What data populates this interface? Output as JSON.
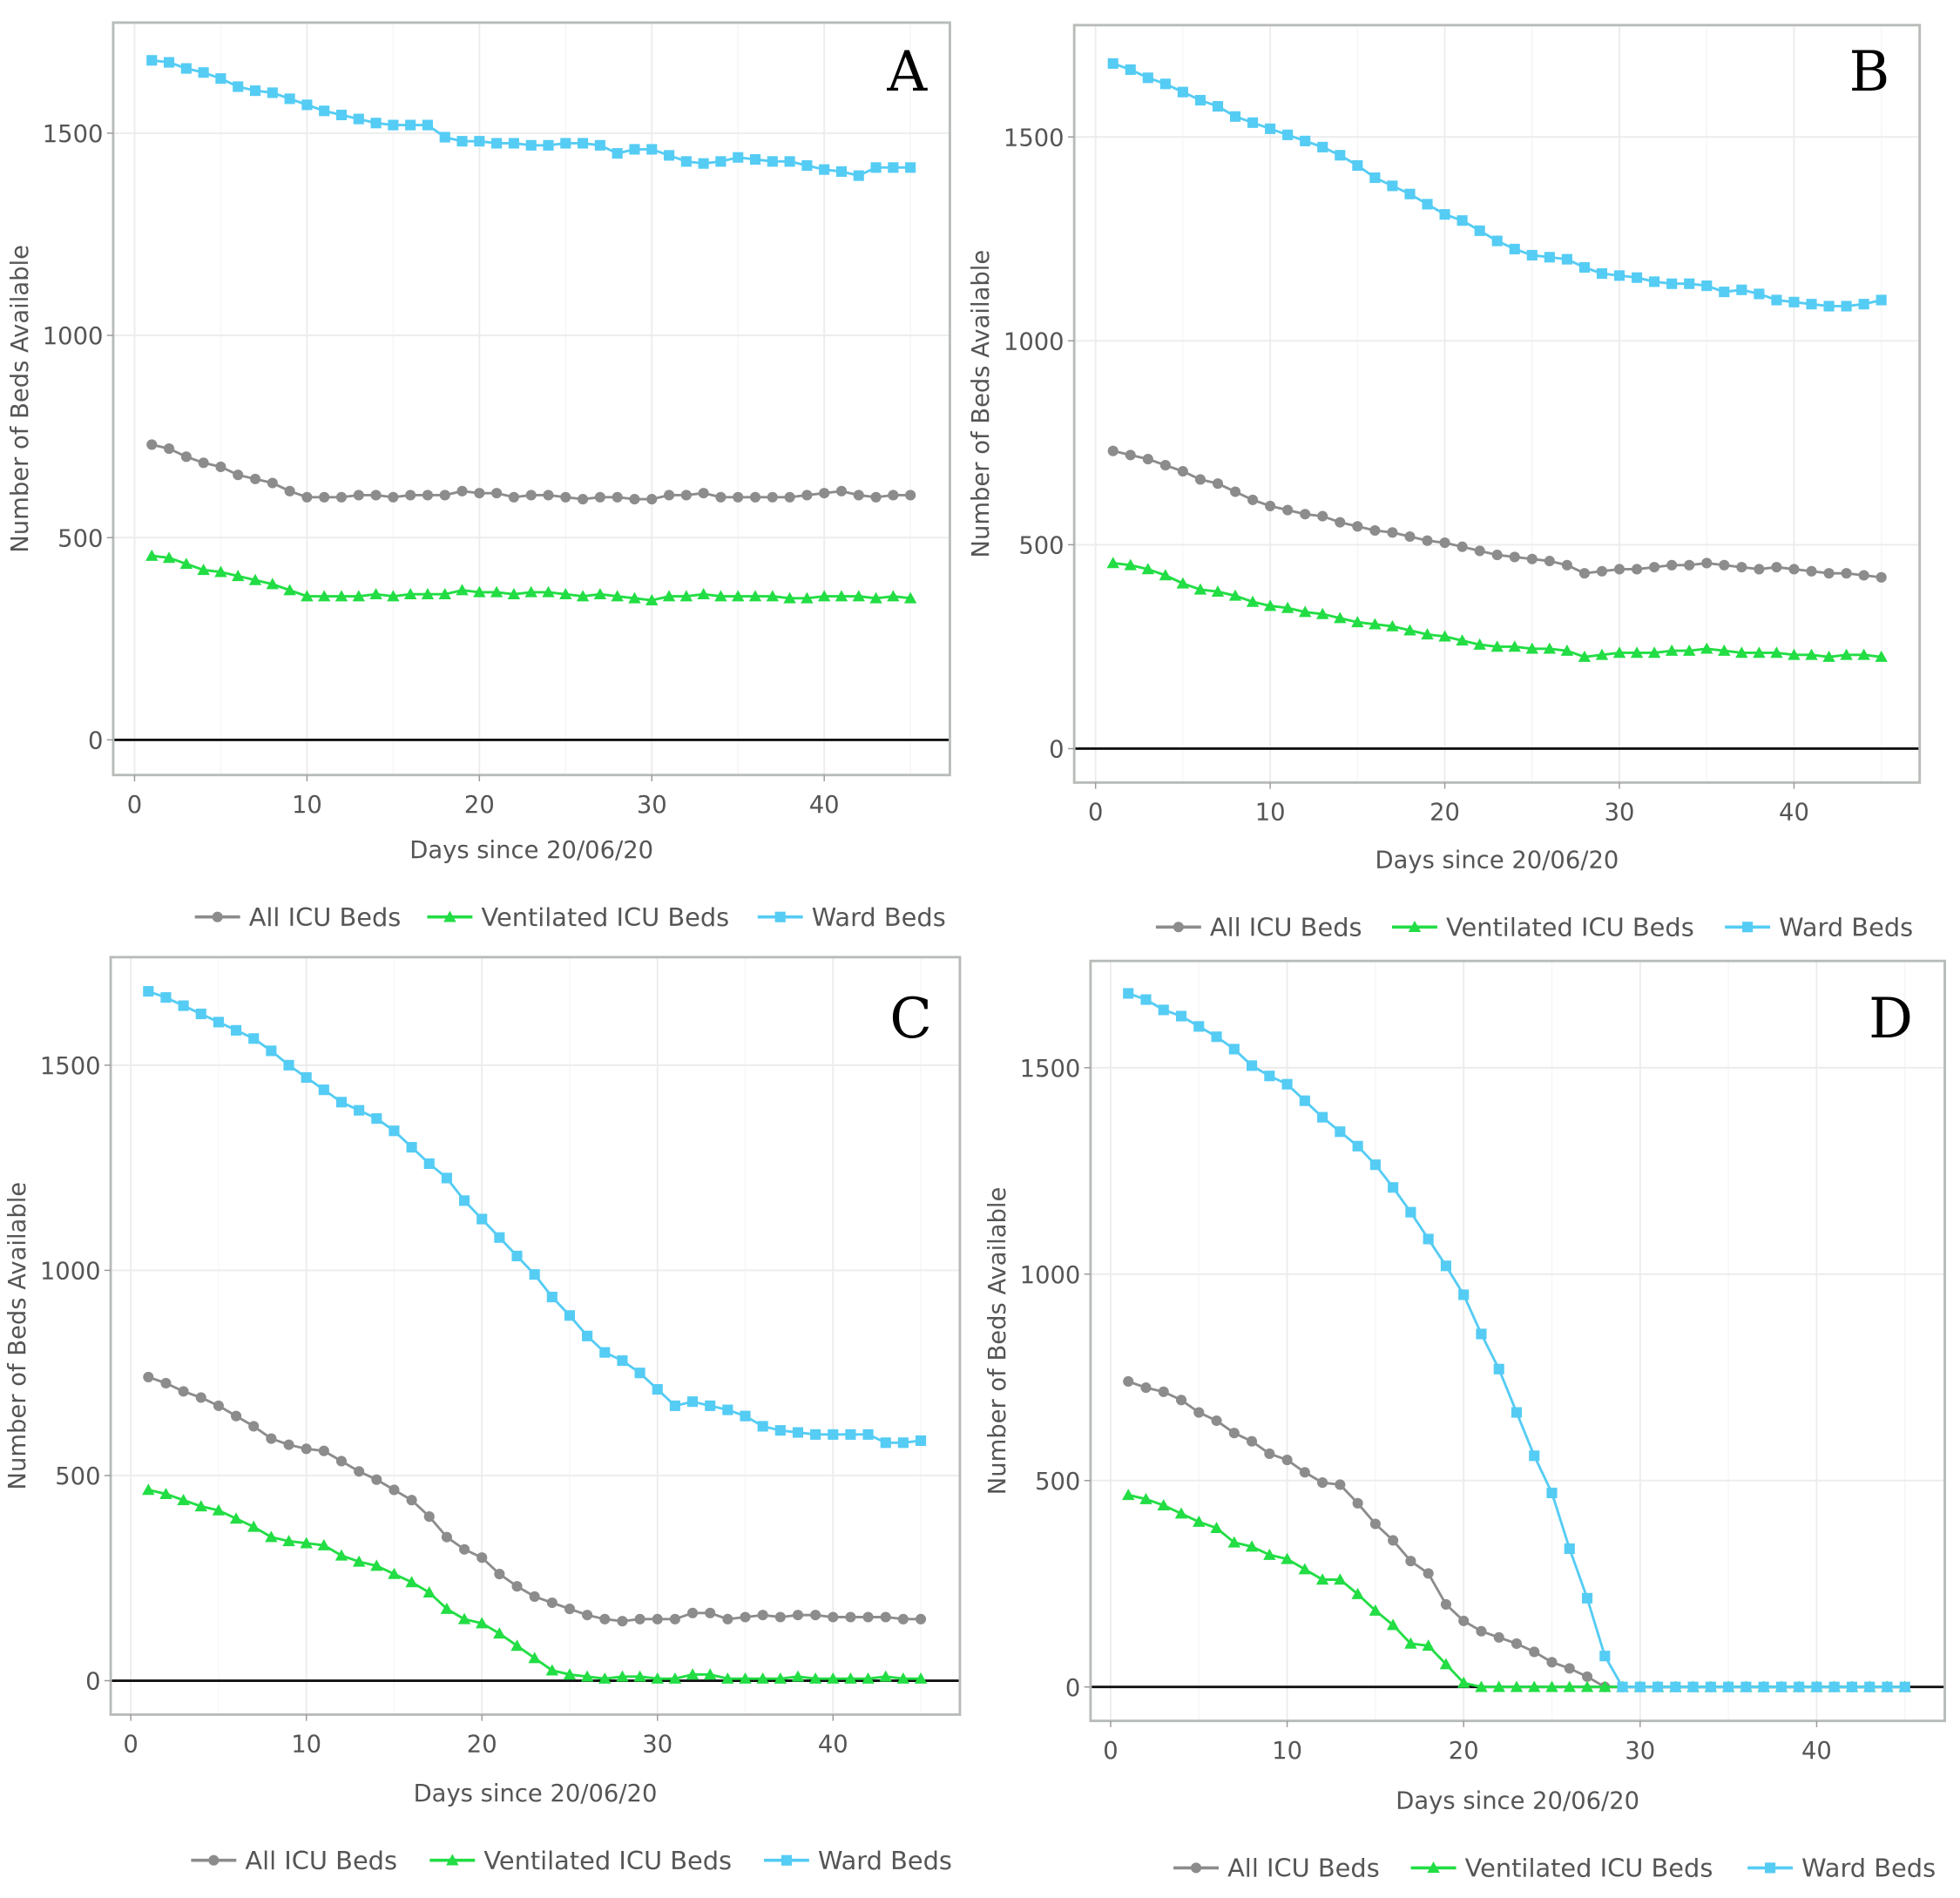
{
  "colors": {
    "all_icu": "#8c8c8c",
    "ventilated_icu": "#22dd44",
    "ward": "#55ccf4",
    "panel_border": "#b8bcb8",
    "zero_line": "#111111",
    "grid": "#ececec"
  },
  "chart_data": [
    {
      "panel": "A",
      "type": "line",
      "xlabel": "Days since 20/06/20",
      "ylabel": "Number of Beds Available",
      "xlim": [
        -1,
        47
      ],
      "ylim": [
        -90,
        1770
      ],
      "xticks": [
        0,
        10,
        20,
        30,
        40
      ],
      "yticks": [
        0,
        500,
        1000,
        1500
      ],
      "grid": true,
      "legend": "bottom",
      "x": [
        1,
        2,
        3,
        4,
        5,
        6,
        7,
        8,
        9,
        10,
        11,
        12,
        13,
        14,
        15,
        16,
        17,
        18,
        19,
        20,
        21,
        22,
        23,
        24,
        25,
        26,
        27,
        28,
        29,
        30,
        31,
        32,
        33,
        34,
        35,
        36,
        37,
        38,
        39,
        40,
        41,
        42,
        43,
        44,
        45
      ],
      "series": [
        {
          "name": "All ICU Beds",
          "marker": "circle",
          "values": [
            730,
            720,
            700,
            685,
            675,
            655,
            645,
            635,
            615,
            600,
            600,
            600,
            605,
            605,
            600,
            605,
            605,
            605,
            615,
            610,
            610,
            600,
            605,
            605,
            600,
            595,
            600,
            600,
            595,
            595,
            605,
            605,
            610,
            600,
            600,
            600,
            600,
            600,
            605,
            610,
            615,
            605,
            600,
            605,
            605
          ]
        },
        {
          "name": "Ventilated ICU Beds",
          "marker": "triangle",
          "values": [
            455,
            450,
            435,
            420,
            415,
            405,
            395,
            385,
            370,
            355,
            355,
            355,
            355,
            360,
            355,
            360,
            360,
            360,
            370,
            365,
            365,
            360,
            365,
            365,
            360,
            355,
            360,
            355,
            350,
            345,
            355,
            355,
            360,
            355,
            355,
            355,
            355,
            350,
            350,
            355,
            355,
            355,
            350,
            355,
            350
          ]
        },
        {
          "name": "Ward Beds",
          "marker": "square",
          "values": [
            1680,
            1675,
            1660,
            1650,
            1635,
            1615,
            1605,
            1600,
            1585,
            1570,
            1555,
            1545,
            1535,
            1525,
            1520,
            1520,
            1520,
            1490,
            1480,
            1480,
            1475,
            1475,
            1470,
            1470,
            1475,
            1475,
            1470,
            1450,
            1460,
            1460,
            1445,
            1430,
            1425,
            1430,
            1440,
            1435,
            1430,
            1430,
            1420,
            1410,
            1405,
            1395,
            1415,
            1415,
            1415
          ]
        }
      ]
    },
    {
      "panel": "B",
      "type": "line",
      "xlabel": "Days since 20/06/20",
      "ylabel": "Number of Beds Available",
      "xlim": [
        -1,
        47
      ],
      "ylim": [
        -90,
        1770
      ],
      "xticks": [
        0,
        10,
        20,
        30,
        40
      ],
      "yticks": [
        0,
        500,
        1000,
        1500
      ],
      "grid": true,
      "legend": "bottom",
      "x": [
        1,
        2,
        3,
        4,
        5,
        6,
        7,
        8,
        9,
        10,
        11,
        12,
        13,
        14,
        15,
        16,
        17,
        18,
        19,
        20,
        21,
        22,
        23,
        24,
        25,
        26,
        27,
        28,
        29,
        30,
        31,
        32,
        33,
        34,
        35,
        36,
        37,
        38,
        39,
        40,
        41,
        42,
        43,
        44,
        45
      ],
      "series": [
        {
          "name": "All ICU Beds",
          "marker": "circle",
          "values": [
            730,
            720,
            710,
            695,
            680,
            660,
            650,
            630,
            610,
            595,
            585,
            575,
            570,
            555,
            545,
            535,
            530,
            520,
            510,
            505,
            495,
            485,
            475,
            470,
            465,
            460,
            450,
            430,
            435,
            440,
            440,
            445,
            450,
            450,
            455,
            450,
            445,
            440,
            445,
            440,
            435,
            430,
            430,
            425,
            420
          ]
        },
        {
          "name": "Ventilated ICU Beds",
          "marker": "triangle",
          "values": [
            455,
            450,
            440,
            425,
            405,
            390,
            385,
            375,
            360,
            350,
            345,
            335,
            330,
            320,
            310,
            305,
            300,
            290,
            280,
            275,
            265,
            255,
            250,
            250,
            245,
            245,
            240,
            225,
            230,
            235,
            235,
            235,
            240,
            240,
            245,
            240,
            235,
            235,
            235,
            230,
            230,
            225,
            230,
            230,
            225
          ]
        },
        {
          "name": "Ward Beds",
          "marker": "square",
          "values": [
            1680,
            1665,
            1645,
            1630,
            1610,
            1590,
            1575,
            1550,
            1535,
            1520,
            1505,
            1490,
            1475,
            1455,
            1430,
            1400,
            1380,
            1360,
            1335,
            1310,
            1295,
            1270,
            1245,
            1225,
            1210,
            1205,
            1200,
            1180,
            1165,
            1160,
            1155,
            1145,
            1140,
            1140,
            1135,
            1120,
            1125,
            1115,
            1100,
            1095,
            1090,
            1085,
            1085,
            1090,
            1100
          ]
        }
      ]
    },
    {
      "panel": "C",
      "type": "line",
      "xlabel": "Days since 20/06/20",
      "ylabel": "Number of Beds Available",
      "xlim": [
        -1,
        47
      ],
      "ylim": [
        -90,
        1770
      ],
      "xticks": [
        0,
        10,
        20,
        30,
        40
      ],
      "yticks": [
        0,
        500,
        1000,
        1500
      ],
      "grid": true,
      "legend": "bottom",
      "x": [
        1,
        2,
        3,
        4,
        5,
        6,
        7,
        8,
        9,
        10,
        11,
        12,
        13,
        14,
        15,
        16,
        17,
        18,
        19,
        20,
        21,
        22,
        23,
        24,
        25,
        26,
        27,
        28,
        29,
        30,
        31,
        32,
        33,
        34,
        35,
        36,
        37,
        38,
        39,
        40,
        41,
        42,
        43,
        44,
        45
      ],
      "series": [
        {
          "name": "All ICU Beds",
          "marker": "circle",
          "values": [
            740,
            725,
            705,
            690,
            670,
            645,
            620,
            590,
            575,
            565,
            560,
            535,
            510,
            490,
            465,
            440,
            400,
            350,
            320,
            300,
            260,
            230,
            205,
            190,
            175,
            160,
            150,
            145,
            150,
            150,
            150,
            165,
            165,
            150,
            155,
            160,
            155,
            160,
            160,
            155,
            155,
            155,
            155,
            150,
            150
          ]
        },
        {
          "name": "Ventilated ICU Beds",
          "marker": "triangle",
          "values": [
            465,
            455,
            440,
            425,
            415,
            395,
            375,
            350,
            340,
            335,
            330,
            305,
            290,
            280,
            260,
            240,
            215,
            175,
            150,
            140,
            115,
            85,
            55,
            25,
            15,
            10,
            5,
            10,
            10,
            5,
            5,
            15,
            15,
            5,
            5,
            5,
            5,
            10,
            5,
            5,
            5,
            5,
            10,
            5,
            5
          ]
        },
        {
          "name": "Ward Beds",
          "marker": "square",
          "values": [
            1680,
            1665,
            1645,
            1625,
            1605,
            1585,
            1565,
            1535,
            1500,
            1470,
            1440,
            1410,
            1390,
            1370,
            1340,
            1300,
            1260,
            1225,
            1170,
            1125,
            1080,
            1035,
            990,
            935,
            890,
            840,
            800,
            780,
            750,
            710,
            670,
            680,
            670,
            660,
            645,
            620,
            610,
            605,
            600,
            600,
            600,
            600,
            580,
            580,
            585
          ]
        }
      ]
    },
    {
      "panel": "D",
      "type": "line",
      "xlabel": "Days since 20/06/20",
      "ylabel": "Number of Beds Available",
      "xlim": [
        -1,
        47
      ],
      "ylim": [
        -90,
        1770
      ],
      "xticks": [
        0,
        10,
        20,
        30,
        40
      ],
      "yticks": [
        0,
        500,
        1000,
        1500
      ],
      "grid": true,
      "legend": "bottom",
      "x": [
        1,
        2,
        3,
        4,
        5,
        6,
        7,
        8,
        9,
        10,
        11,
        12,
        13,
        14,
        15,
        16,
        17,
        18,
        19,
        20,
        21,
        22,
        23,
        24,
        25,
        26,
        27,
        28,
        29,
        30,
        31,
        32,
        33,
        34,
        35,
        36,
        37,
        38,
        39,
        40,
        41,
        42,
        43,
        44,
        45
      ],
      "series": [
        {
          "name": "All ICU Beds",
          "marker": "circle",
          "values": [
            740,
            725,
            715,
            695,
            665,
            645,
            615,
            595,
            565,
            550,
            520,
            495,
            490,
            445,
            395,
            355,
            305,
            275,
            200,
            160,
            135,
            120,
            105,
            85,
            60,
            45,
            25,
            0,
            0,
            0,
            0,
            0,
            0,
            0,
            0,
            0,
            0,
            0,
            0,
            0,
            0,
            0,
            0,
            0,
            0
          ]
        },
        {
          "name": "Ventilated ICU Beds",
          "marker": "triangle",
          "values": [
            465,
            455,
            440,
            420,
            400,
            385,
            350,
            340,
            320,
            310,
            285,
            260,
            260,
            225,
            185,
            150,
            105,
            100,
            55,
            10,
            0,
            0,
            0,
            0,
            0,
            0,
            0,
            0,
            0,
            0,
            0,
            0,
            0,
            0,
            0,
            0,
            0,
            0,
            0,
            0,
            0,
            0,
            0,
            0,
            0
          ]
        },
        {
          "name": "Ward Beds",
          "marker": "square",
          "values": [
            1680,
            1665,
            1640,
            1625,
            1600,
            1575,
            1545,
            1505,
            1480,
            1460,
            1420,
            1380,
            1345,
            1310,
            1265,
            1210,
            1150,
            1085,
            1020,
            950,
            855,
            770,
            665,
            560,
            470,
            335,
            215,
            75,
            0,
            0,
            0,
            0,
            0,
            0,
            0,
            0,
            0,
            0,
            0,
            0,
            0,
            0,
            0,
            0,
            0
          ]
        }
      ]
    }
  ]
}
